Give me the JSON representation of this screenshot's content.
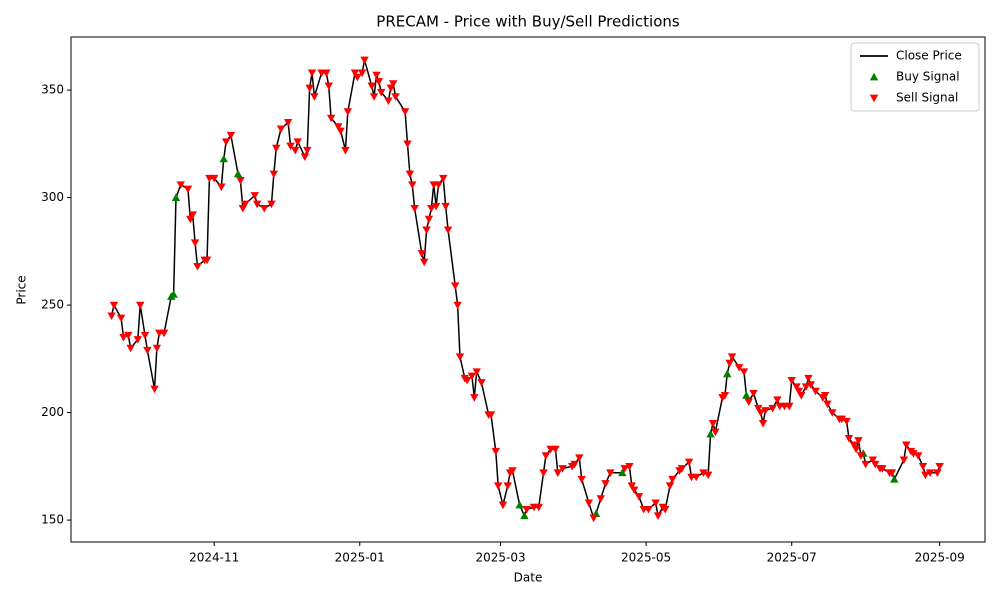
{
  "chart_data": {
    "type": "line",
    "title": "PRECAM - Price with Buy/Sell Predictions",
    "x_label": "Date",
    "y_label": "Price",
    "xlim": [
      "2024-09-02",
      "2025-09-20"
    ],
    "xticks": [
      {
        "value": "2024-11-01",
        "label": "2024-11"
      },
      {
        "value": "2025-01-01",
        "label": "2025-01"
      },
      {
        "value": "2025-03-01",
        "label": "2025-03"
      },
      {
        "value": "2025-05-01",
        "label": "2025-05"
      },
      {
        "value": "2025-07-01",
        "label": "2025-07"
      },
      {
        "value": "2025-09-01",
        "label": "2025-09"
      }
    ],
    "ylim": [
      139.8,
      374.7
    ],
    "yticks": [
      150,
      200,
      250,
      300,
      350
    ],
    "grid": false,
    "legend": "upper right",
    "series": [
      {
        "name": "Close Price",
        "type": "line",
        "color": "#000000",
        "x": [
          "2024-09-19",
          "2024-09-20",
          "2024-09-23",
          "2024-09-24",
          "2024-09-26",
          "2024-09-27",
          "2024-09-30",
          "2024-10-01",
          "2024-10-03",
          "2024-10-04",
          "2024-10-07",
          "2024-10-08",
          "2024-10-09",
          "2024-10-11",
          "2024-10-14",
          "2024-10-15",
          "2024-10-16",
          "2024-10-18",
          "2024-10-21",
          "2024-10-22",
          "2024-10-23",
          "2024-10-24",
          "2024-10-25",
          "2024-10-28",
          "2024-10-29",
          "2024-10-30",
          "2024-11-01",
          "2024-11-04",
          "2024-11-05",
          "2024-11-06",
          "2024-11-08",
          "2024-11-11",
          "2024-11-12",
          "2024-11-13",
          "2024-11-14",
          "2024-11-18",
          "2024-11-19",
          "2024-11-22",
          "2024-11-25",
          "2024-11-26",
          "2024-11-27",
          "2024-11-29",
          "2024-12-02",
          "2024-12-03",
          "2024-12-05",
          "2024-12-06",
          "2024-12-09",
          "2024-12-10",
          "2024-12-11",
          "2024-12-12",
          "2024-12-13",
          "2024-12-16",
          "2024-12-18",
          "2024-12-19",
          "2024-12-20",
          "2024-12-23",
          "2024-12-24",
          "2024-12-26",
          "2024-12-27",
          "2024-12-30",
          "2024-12-31",
          "2025-01-02",
          "2025-01-03",
          "2025-01-06",
          "2025-01-07",
          "2025-01-08",
          "2025-01-09",
          "2025-01-10",
          "2025-01-13",
          "2025-01-14",
          "2025-01-15",
          "2025-01-16",
          "2025-01-20",
          "2025-01-21",
          "2025-01-22",
          "2025-01-23",
          "2025-01-24",
          "2025-01-27",
          "2025-01-28",
          "2025-01-29",
          "2025-01-30",
          "2025-01-31",
          "2025-02-01",
          "2025-02-02",
          "2025-02-03",
          "2025-02-05",
          "2025-02-06",
          "2025-02-07",
          "2025-02-10",
          "2025-02-11",
          "2025-02-12",
          "2025-02-14",
          "2025-02-15",
          "2025-02-17",
          "2025-02-18",
          "2025-02-19",
          "2025-02-21",
          "2025-02-24",
          "2025-02-25",
          "2025-02-27",
          "2025-02-28",
          "2025-03-02",
          "2025-03-04",
          "2025-03-05",
          "2025-03-06",
          "2025-03-09",
          "2025-03-11",
          "2025-03-12",
          "2025-03-15",
          "2025-03-17",
          "2025-03-19",
          "2025-03-20",
          "2025-03-22",
          "2025-03-24",
          "2025-03-25",
          "2025-03-27",
          "2025-03-31",
          "2025-04-01",
          "2025-04-03",
          "2025-04-04",
          "2025-04-07",
          "2025-04-09",
          "2025-04-10",
          "2025-04-12",
          "2025-04-14",
          "2025-04-16",
          "2025-04-21",
          "2025-04-22",
          "2025-04-24",
          "2025-04-25",
          "2025-04-26",
          "2025-04-28",
          "2025-04-30",
          "2025-05-02",
          "2025-05-05",
          "2025-05-06",
          "2025-05-08",
          "2025-05-09",
          "2025-05-11",
          "2025-05-12",
          "2025-05-15",
          "2025-05-16",
          "2025-05-19",
          "2025-05-20",
          "2025-05-22",
          "2025-05-25",
          "2025-05-27",
          "2025-05-28",
          "2025-05-29",
          "2025-05-30",
          "2025-06-02",
          "2025-06-03",
          "2025-06-04",
          "2025-06-05",
          "2025-06-06",
          "2025-06-09",
          "2025-06-11",
          "2025-06-12",
          "2025-06-13",
          "2025-06-15",
          "2025-06-17",
          "2025-06-18",
          "2025-06-19",
          "2025-06-20",
          "2025-06-23",
          "2025-06-25",
          "2025-06-26",
          "2025-06-28",
          "2025-06-30",
          "2025-07-01",
          "2025-07-03",
          "2025-07-04",
          "2025-07-05",
          "2025-07-07",
          "2025-07-08",
          "2025-07-09",
          "2025-07-11",
          "2025-07-14",
          "2025-07-15",
          "2025-07-16",
          "2025-07-18",
          "2025-07-21",
          "2025-07-22",
          "2025-07-24",
          "2025-07-25",
          "2025-07-27",
          "2025-07-28",
          "2025-07-29",
          "2025-07-30",
          "2025-07-31",
          "2025-08-01",
          "2025-08-04",
          "2025-08-05",
          "2025-08-07",
          "2025-08-08",
          "2025-08-11",
          "2025-08-12",
          "2025-08-13",
          "2025-08-17",
          "2025-08-18",
          "2025-08-20",
          "2025-08-21",
          "2025-08-23",
          "2025-08-25",
          "2025-08-26",
          "2025-08-28",
          "2025-08-31",
          "2025-09-01"
        ],
        "values": [
          245,
          250,
          244,
          235,
          236,
          230,
          234,
          250,
          236,
          229,
          211,
          230,
          237,
          237,
          254,
          255,
          300,
          306,
          304,
          290,
          292,
          279,
          268,
          271,
          271,
          309,
          309,
          305,
          318,
          326,
          329,
          311,
          308,
          295,
          297,
          301,
          297,
          295,
          297,
          311,
          323,
          332,
          335,
          324,
          322,
          326,
          319,
          322,
          351,
          358,
          347,
          358,
          358,
          352,
          337,
          333,
          331,
          322,
          340,
          358,
          356,
          358,
          364,
          352,
          347,
          357,
          354,
          349,
          345,
          351,
          353,
          347,
          340,
          325,
          311,
          306,
          295,
          274,
          270,
          285,
          290,
          295,
          306,
          296,
          306,
          309,
          296,
          285,
          259,
          250,
          226,
          216,
          215,
          217,
          207,
          219,
          214,
          199,
          199,
          182,
          166,
          157,
          166,
          172,
          173,
          157,
          152,
          155,
          156,
          156,
          172,
          180,
          183,
          183,
          172,
          174,
          175,
          176,
          179,
          169,
          158,
          151,
          153,
          160,
          167,
          172,
          172,
          174,
          175,
          166,
          164,
          161,
          155,
          155,
          158,
          152,
          156,
          155,
          166,
          169,
          173,
          174,
          177,
          170,
          170,
          172,
          171,
          190,
          195,
          191,
          207,
          208,
          218,
          223,
          226,
          221,
          219,
          208,
          205,
          209,
          202,
          200,
          195,
          201,
          202,
          206,
          203,
          203,
          203,
          215,
          212,
          210,
          208,
          212,
          216,
          213,
          210,
          207,
          208,
          204,
          200,
          197,
          197,
          196,
          188,
          185,
          183,
          187,
          180,
          181,
          176,
          178,
          176,
          174,
          174,
          172,
          172,
          169,
          178,
          185,
          182,
          181,
          180,
          175,
          171,
          172,
          172,
          175
        ]
      },
      {
        "name": "Buy Signal",
        "type": "scatter",
        "marker": "^",
        "color": "#008000",
        "x": [
          "2024-10-14",
          "2024-10-15",
          "2024-10-16",
          "2024-11-05",
          "2024-11-11",
          "2025-03-09",
          "2025-03-11",
          "2025-04-10",
          "2025-04-21",
          "2025-05-28",
          "2025-06-04",
          "2025-06-12",
          "2025-07-31",
          "2025-08-13"
        ],
        "values": [
          254,
          255,
          300,
          318,
          311,
          157,
          152,
          153,
          172,
          190,
          218,
          208,
          181,
          169
        ]
      },
      {
        "name": "Sell Signal",
        "type": "scatter",
        "marker": "v",
        "color": "#ff0000",
        "x": [
          "2024-09-19",
          "2024-09-20",
          "2024-09-23",
          "2024-09-24",
          "2024-09-26",
          "2024-09-27",
          "2024-09-30",
          "2024-10-01",
          "2024-10-03",
          "2024-10-04",
          "2024-10-07",
          "2024-10-08",
          "2024-10-09",
          "2024-10-11",
          "2024-10-18",
          "2024-10-21",
          "2024-10-22",
          "2024-10-23",
          "2024-10-24",
          "2024-10-25",
          "2024-10-28",
          "2024-10-29",
          "2024-10-30",
          "2024-11-01",
          "2024-11-04",
          "2024-11-06",
          "2024-11-08",
          "2024-11-12",
          "2024-11-13",
          "2024-11-14",
          "2024-11-18",
          "2024-11-19",
          "2024-11-22",
          "2024-11-25",
          "2024-11-26",
          "2024-11-27",
          "2024-11-29",
          "2024-12-02",
          "2024-12-03",
          "2024-12-05",
          "2024-12-06",
          "2024-12-09",
          "2024-12-10",
          "2024-12-11",
          "2024-12-12",
          "2024-12-13",
          "2024-12-16",
          "2024-12-18",
          "2024-12-19",
          "2024-12-20",
          "2024-12-23",
          "2024-12-24",
          "2024-12-26",
          "2024-12-27",
          "2024-12-30",
          "2024-12-31",
          "2025-01-02",
          "2025-01-03",
          "2025-01-06",
          "2025-01-07",
          "2025-01-08",
          "2025-01-09",
          "2025-01-10",
          "2025-01-13",
          "2025-01-14",
          "2025-01-15",
          "2025-01-16",
          "2025-01-20",
          "2025-01-21",
          "2025-01-22",
          "2025-01-23",
          "2025-01-24",
          "2025-01-27",
          "2025-01-28",
          "2025-01-29",
          "2025-01-30",
          "2025-01-31",
          "2025-02-01",
          "2025-02-02",
          "2025-02-03",
          "2025-02-05",
          "2025-02-06",
          "2025-02-07",
          "2025-02-10",
          "2025-02-11",
          "2025-02-12",
          "2025-02-14",
          "2025-02-15",
          "2025-02-17",
          "2025-02-18",
          "2025-02-19",
          "2025-02-21",
          "2025-02-24",
          "2025-02-25",
          "2025-02-27",
          "2025-02-28",
          "2025-03-02",
          "2025-03-04",
          "2025-03-05",
          "2025-03-06",
          "2025-03-12",
          "2025-03-15",
          "2025-03-17",
          "2025-03-19",
          "2025-03-20",
          "2025-03-22",
          "2025-03-24",
          "2025-03-25",
          "2025-03-27",
          "2025-03-31",
          "2025-04-01",
          "2025-04-03",
          "2025-04-04",
          "2025-04-07",
          "2025-04-09",
          "2025-04-12",
          "2025-04-14",
          "2025-04-16",
          "2025-04-22",
          "2025-04-24",
          "2025-04-25",
          "2025-04-26",
          "2025-04-28",
          "2025-04-30",
          "2025-05-02",
          "2025-05-05",
          "2025-05-06",
          "2025-05-08",
          "2025-05-09",
          "2025-05-11",
          "2025-05-12",
          "2025-05-15",
          "2025-05-16",
          "2025-05-19",
          "2025-05-20",
          "2025-05-22",
          "2025-05-25",
          "2025-05-27",
          "2025-05-29",
          "2025-05-30",
          "2025-06-02",
          "2025-06-03",
          "2025-06-05",
          "2025-06-06",
          "2025-06-09",
          "2025-06-11",
          "2025-06-13",
          "2025-06-15",
          "2025-06-17",
          "2025-06-18",
          "2025-06-19",
          "2025-06-20",
          "2025-06-23",
          "2025-06-25",
          "2025-06-26",
          "2025-06-28",
          "2025-06-30",
          "2025-07-01",
          "2025-07-03",
          "2025-07-04",
          "2025-07-05",
          "2025-07-07",
          "2025-07-08",
          "2025-07-09",
          "2025-07-11",
          "2025-07-14",
          "2025-07-15",
          "2025-07-16",
          "2025-07-18",
          "2025-07-21",
          "2025-07-22",
          "2025-07-24",
          "2025-07-25",
          "2025-07-27",
          "2025-07-28",
          "2025-07-29",
          "2025-07-30",
          "2025-08-01",
          "2025-08-04",
          "2025-08-05",
          "2025-08-07",
          "2025-08-08",
          "2025-08-11",
          "2025-08-12",
          "2025-08-17",
          "2025-08-18",
          "2025-08-20",
          "2025-08-21",
          "2025-08-23",
          "2025-08-25",
          "2025-08-26",
          "2025-08-28",
          "2025-08-31",
          "2025-09-01"
        ],
        "values": [
          245,
          250,
          244,
          235,
          236,
          230,
          234,
          250,
          236,
          229,
          211,
          230,
          237,
          237,
          306,
          304,
          290,
          292,
          279,
          268,
          271,
          271,
          309,
          309,
          305,
          326,
          329,
          308,
          295,
          297,
          301,
          297,
          295,
          297,
          311,
          323,
          332,
          335,
          324,
          322,
          326,
          319,
          322,
          351,
          358,
          347,
          358,
          358,
          352,
          337,
          333,
          331,
          322,
          340,
          358,
          356,
          358,
          364,
          352,
          347,
          357,
          354,
          349,
          345,
          351,
          353,
          347,
          340,
          325,
          311,
          306,
          295,
          274,
          270,
          285,
          290,
          295,
          306,
          296,
          306,
          309,
          296,
          285,
          259,
          250,
          226,
          216,
          215,
          217,
          207,
          219,
          214,
          199,
          199,
          182,
          166,
          157,
          166,
          172,
          173,
          155,
          156,
          156,
          172,
          180,
          183,
          183,
          172,
          174,
          175,
          176,
          179,
          169,
          158,
          151,
          160,
          167,
          172,
          174,
          175,
          166,
          164,
          161,
          155,
          155,
          158,
          152,
          156,
          155,
          166,
          169,
          173,
          174,
          177,
          170,
          170,
          172,
          171,
          195,
          191,
          207,
          208,
          223,
          226,
          221,
          219,
          205,
          209,
          202,
          200,
          195,
          201,
          202,
          206,
          203,
          203,
          203,
          215,
          212,
          210,
          208,
          212,
          216,
          213,
          210,
          207,
          208,
          204,
          200,
          197,
          197,
          196,
          188,
          185,
          183,
          187,
          180,
          176,
          178,
          176,
          174,
          174,
          172,
          172,
          178,
          185,
          182,
          181,
          180,
          175,
          171,
          172,
          172,
          175
        ]
      }
    ]
  }
}
